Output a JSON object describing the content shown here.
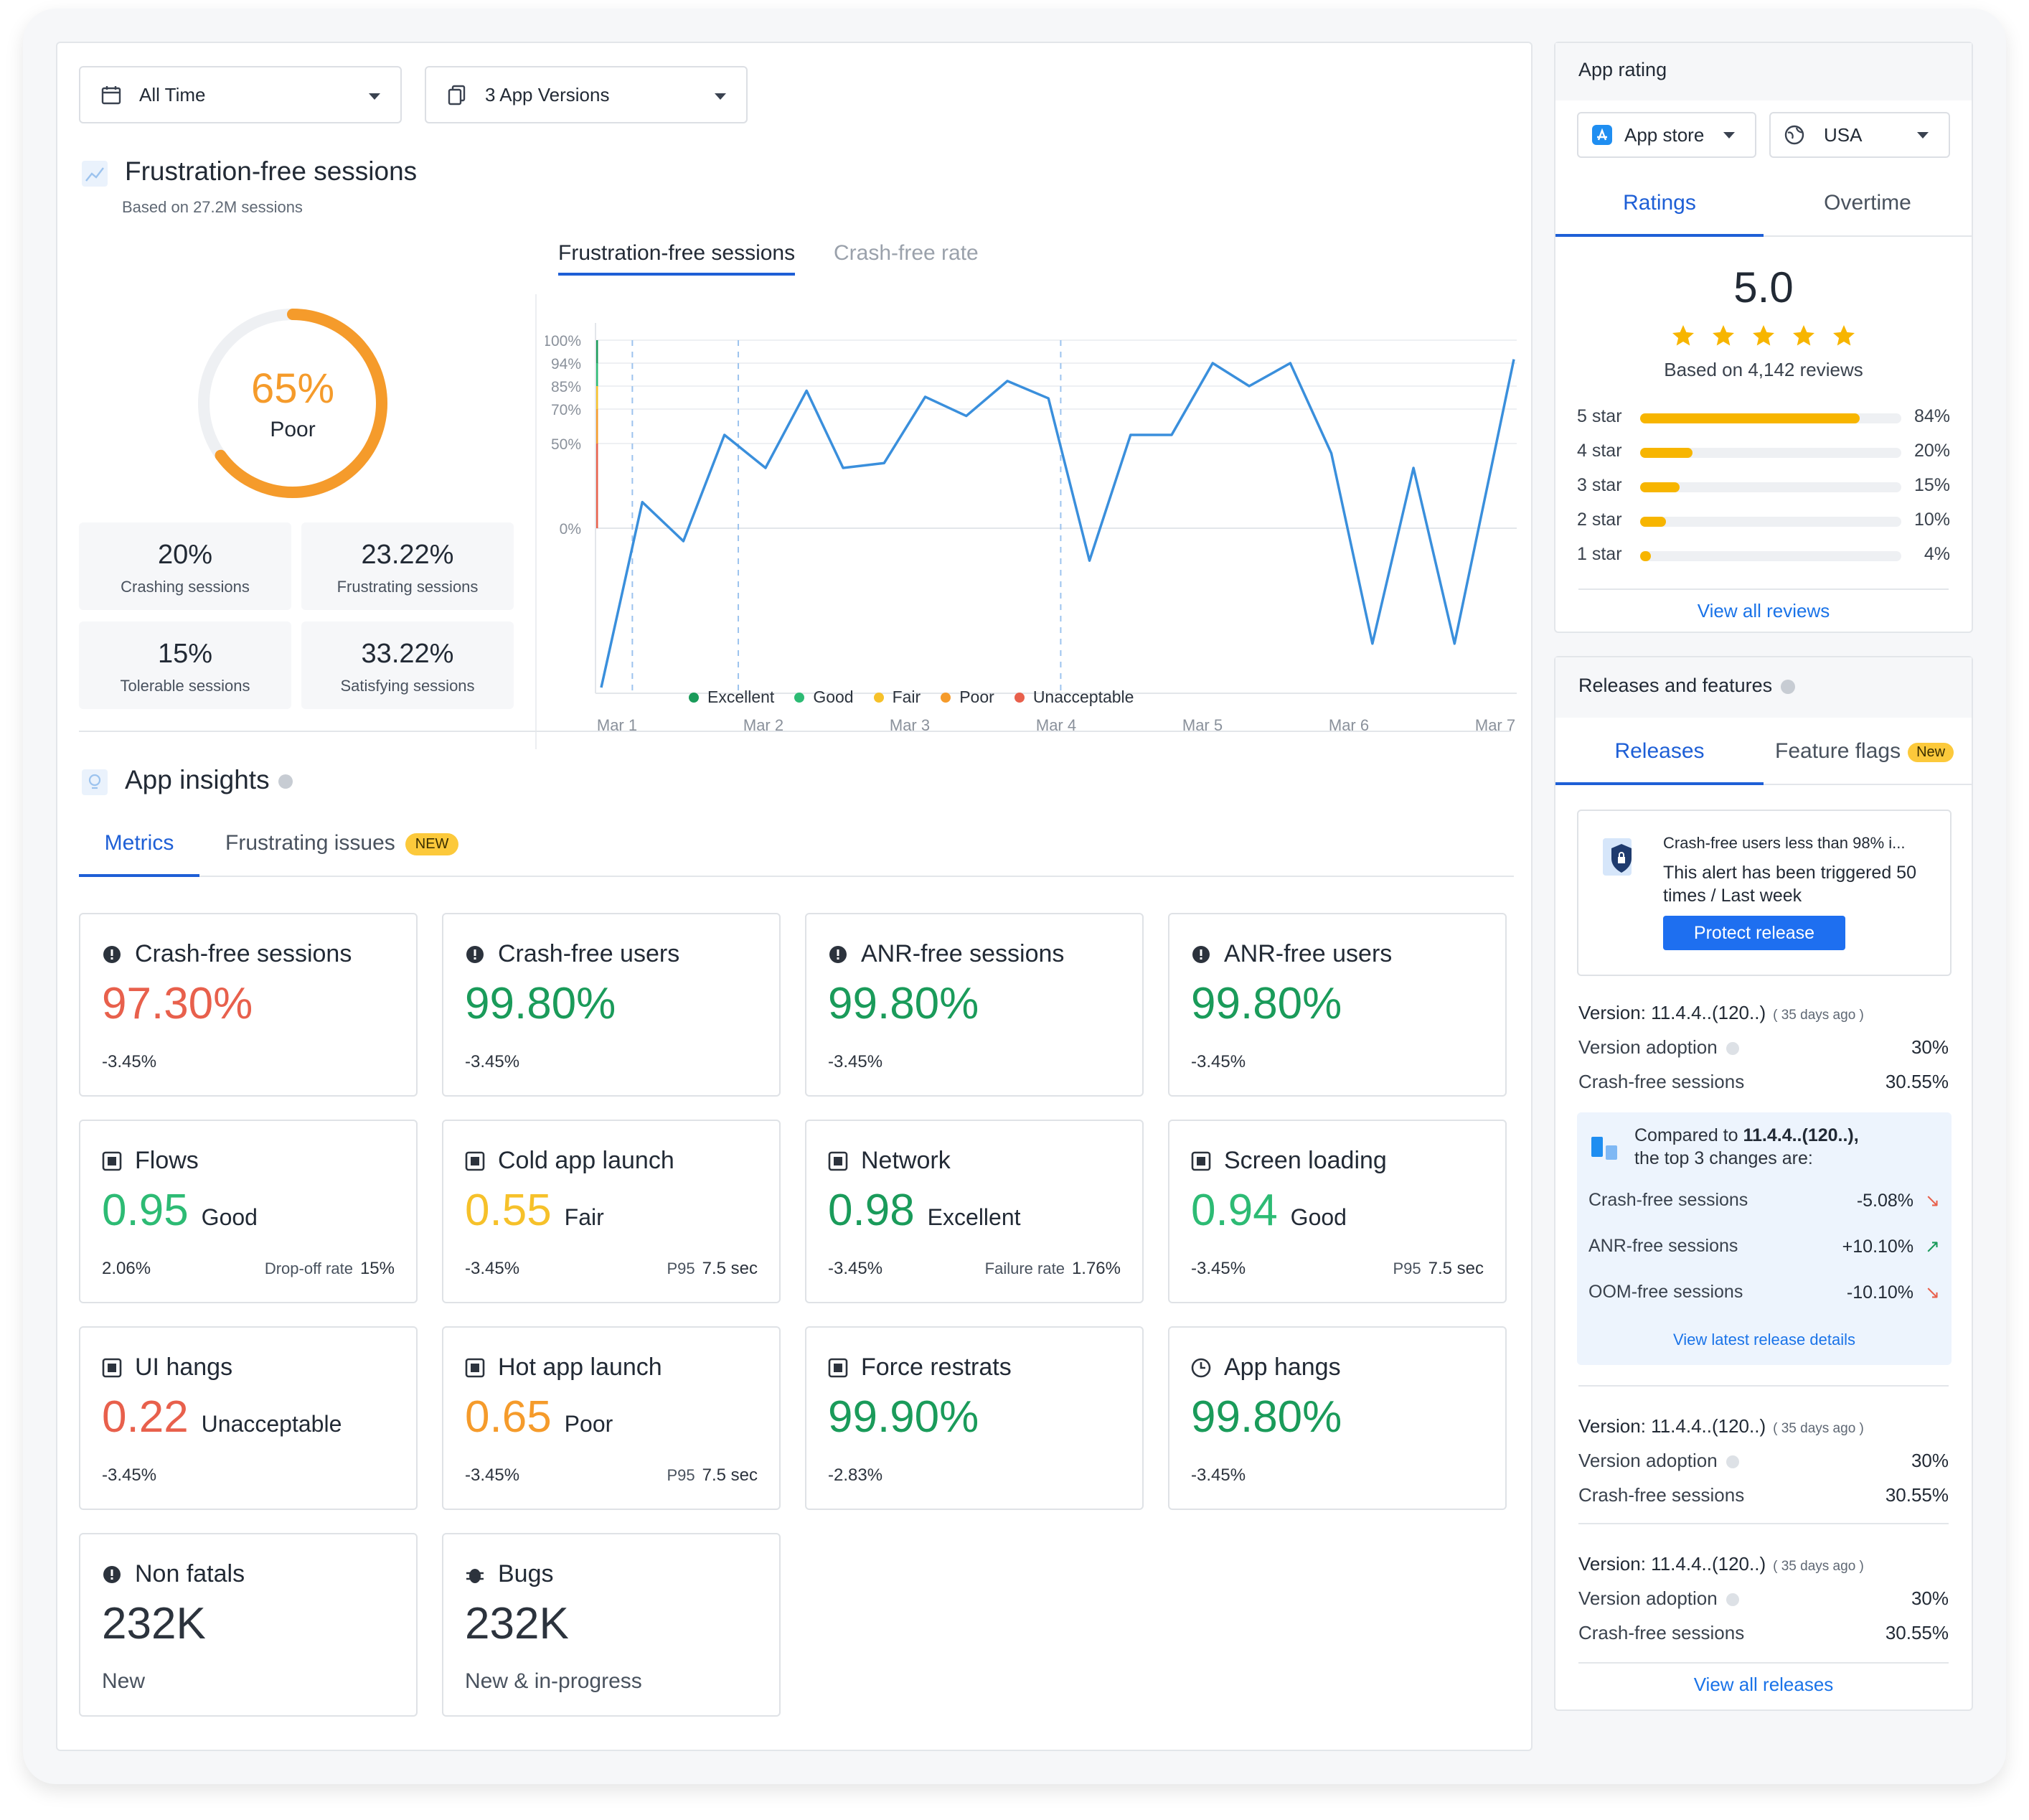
{
  "filters": {
    "time": "All Time",
    "versions": "3 App Versions"
  },
  "ffs": {
    "title": "Frustration-free sessions",
    "subtitle": "Based on 27.2M sessions",
    "gauge_value": "65%",
    "gauge_fraction": 0.65,
    "gauge_label": "Poor",
    "tiles": [
      {
        "value": "20%",
        "label": "Crashing sessions"
      },
      {
        "value": "23.22%",
        "label": "Frustrating sessions"
      },
      {
        "value": "15%",
        "label": "Tolerable sessions"
      },
      {
        "value": "33.22%",
        "label": "Satisfying sessions"
      }
    ],
    "chart_tabs": [
      "Frustration-free sessions",
      "Crash-free rate"
    ]
  },
  "chart_data": {
    "type": "line",
    "y_ticks": [
      "100%",
      "94%",
      "85%",
      "70%",
      "50%",
      "0%"
    ],
    "x_ticks": [
      "Mar 1",
      "Mar 2",
      "Mar 3",
      "Mar 4",
      "Mar 5",
      "Mar 6",
      "Mar 7"
    ],
    "legend": [
      {
        "name": "Excellent",
        "color": "#1a9b5a"
      },
      {
        "name": "Good",
        "color": "#2dbb74"
      },
      {
        "name": "Fair",
        "color": "#f6c12a"
      },
      {
        "name": "Poor",
        "color": "#f59b2b"
      },
      {
        "name": "Unacceptable",
        "color": "#e8604c"
      }
    ],
    "series": [
      {
        "values": [
          0,
          38,
          30,
          55,
          45,
          82,
          45,
          46,
          78,
          66,
          87,
          77,
          26,
          55,
          55,
          94,
          85,
          94,
          48,
          9,
          45,
          9,
          95
        ]
      }
    ],
    "x_positions": [
      0.0,
      0.045,
      0.09,
      0.135,
      0.18,
      0.225,
      0.265,
      0.31,
      0.355,
      0.4,
      0.445,
      0.49,
      0.535,
      0.58,
      0.625,
      0.67,
      0.71,
      0.755,
      0.8,
      0.845,
      0.89,
      0.935,
      1.0
    ],
    "line_color": "#3a8fdc"
  },
  "insights": {
    "title": "App insights",
    "tabs": [
      "Metrics",
      "Frustrating issues"
    ],
    "new_badge": "NEW",
    "cards": [
      {
        "title": "Crash-free sessions",
        "value": "97.30%",
        "color": "red",
        "delta": "-3.45%"
      },
      {
        "title": "Crash-free users",
        "value": "99.80%",
        "color": "grn",
        "delta": "-3.45%"
      },
      {
        "title": "ANR-free sessions",
        "value": "99.80%",
        "color": "grn",
        "delta": "-3.45%"
      },
      {
        "title": "ANR-free users",
        "value": "99.80%",
        "color": "grn",
        "delta": "-3.45%"
      },
      {
        "title": "Flows",
        "value": "0.95",
        "quality": "Good",
        "color": "lgrn",
        "delta": "2.06%",
        "rlabel": "Drop-off rate",
        "rvalue": "15%"
      },
      {
        "title": "Cold app launch",
        "value": "0.55",
        "quality": "Fair",
        "color": "yel",
        "delta": "-3.45%",
        "rlabel": "P95",
        "rvalue": "7.5 sec"
      },
      {
        "title": "Network",
        "value": "0.98",
        "quality": "Excellent",
        "color": "grn",
        "delta": "-3.45%",
        "rlabel": "Failure rate",
        "rvalue": "1.76%"
      },
      {
        "title": "Screen loading",
        "value": "0.94",
        "quality": "Good",
        "color": "lgrn",
        "delta": "-3.45%",
        "rlabel": "P95",
        "rvalue": "7.5 sec"
      },
      {
        "title": "UI hangs",
        "value": "0.22",
        "quality": "Unacceptable",
        "color": "red",
        "delta": "-3.45%"
      },
      {
        "title": "Hot app launch",
        "value": "0.65",
        "quality": "Poor",
        "color": "org",
        "delta": "-3.45%",
        "rlabel": "P95",
        "rvalue": "7.5 sec"
      },
      {
        "title": "Force restrats",
        "value": "99.90%",
        "color": "grn",
        "delta": "-2.83%"
      },
      {
        "title": "App hangs",
        "value": "99.80%",
        "color": "grn",
        "delta": "-3.45%"
      },
      {
        "title": "Non fatals",
        "value": "232K",
        "color": "dark",
        "delta": "New"
      },
      {
        "title": "Bugs",
        "value": "232K",
        "color": "dark",
        "delta": "New & in-progress"
      }
    ]
  },
  "rating": {
    "title": "App rating",
    "store": "App store",
    "country": "USA",
    "tabs": [
      "Ratings",
      "Overtime"
    ],
    "score": "5.0",
    "based": "Based on 4,142 reviews",
    "bars": [
      {
        "label": "5 star",
        "pct": "84%",
        "value": 0.84
      },
      {
        "label": "4 star",
        "pct": "20%",
        "value": 0.2
      },
      {
        "label": "3 star",
        "pct": "15%",
        "value": 0.15
      },
      {
        "label": "2 star",
        "pct": "10%",
        "value": 0.1
      },
      {
        "label": "1 star",
        "pct": "4%",
        "value": 0.04
      }
    ],
    "view_all": "View all reviews"
  },
  "releases": {
    "title": "Releases and features",
    "tabs": [
      "Releases",
      "Feature flags"
    ],
    "new_badge": "New",
    "alert_title": "Crash-free users less than 98% i...",
    "alert_body": "This alert has been triggered 50 times / Last week",
    "protect": "Protect release",
    "versions": [
      {
        "name": "Version: 11.4.4..(120..)",
        "ago": "( 35 days ago )",
        "adoption_label": "Version adoption",
        "adoption": "30%",
        "cfs_label": "Crash-free sessions",
        "cfs": "30.55%"
      },
      {
        "name": "Version: 11.4.4..(120..)",
        "ago": "( 35 days ago )",
        "adoption_label": "Version adoption",
        "adoption": "30%",
        "cfs_label": "Crash-free sessions",
        "cfs": "30.55%"
      },
      {
        "name": "Version: 11.4.4..(120..)",
        "ago": "( 35 days ago )",
        "adoption_label": "Version adoption",
        "adoption": "30%",
        "cfs_label": "Crash-free sessions",
        "cfs": "30.55%"
      }
    ],
    "compare_prefix": "Compared to",
    "compare_version": "11.4.4..(120..),",
    "compare_suffix": "the top 3 changes are:",
    "changes": [
      {
        "label": "Crash-free sessions",
        "value": "-5.08%",
        "dir": "down"
      },
      {
        "label": "ANR-free sessions",
        "value": "+10.10%",
        "dir": "up"
      },
      {
        "label": "OOM-free sessions",
        "value": "-10.10%",
        "dir": "down"
      }
    ],
    "latest_link": "View latest release details",
    "view_all": "View all releases"
  }
}
